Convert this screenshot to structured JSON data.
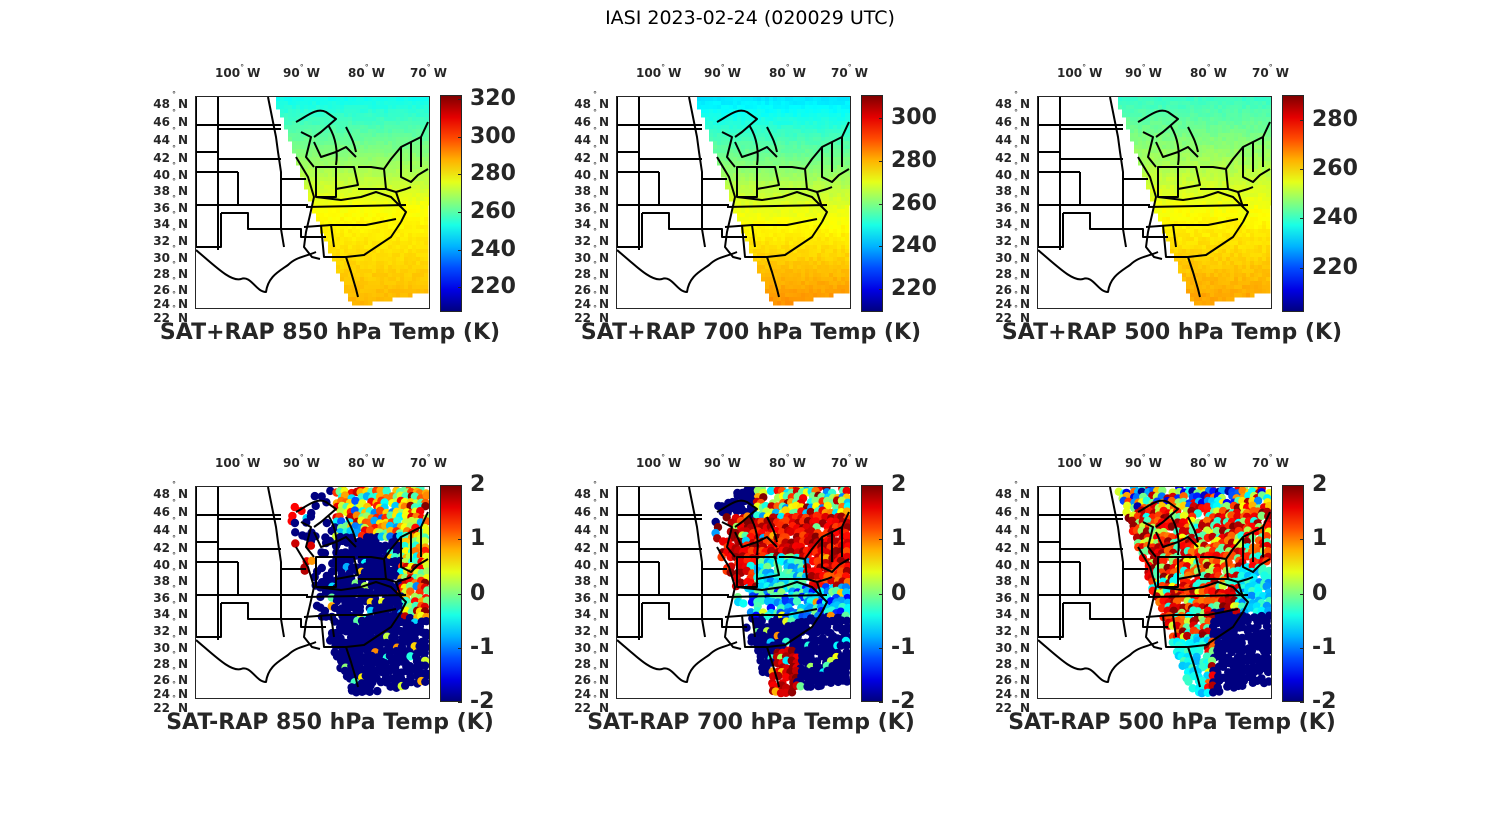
{
  "figure": {
    "title": "IASI 2023-02-24 (020029 UTC)"
  },
  "chart_data": [
    {
      "type": "heatmap",
      "title": "SAT+RAP 850 hPa Temp (K)",
      "variable": "850 hPa Temperature (SAT+RAP)",
      "units": "K",
      "colormap": "jet",
      "clim": [
        207,
        322
      ],
      "colorbar_ticks": [
        "220",
        "240",
        "260",
        "280",
        "300",
        "320"
      ],
      "colorbar_tick_values": [
        220,
        240,
        260,
        280,
        300,
        320
      ],
      "lon_ticks": [
        "100",
        "90",
        "80",
        "70"
      ],
      "lat_ticks": [
        "48",
        "46",
        "44",
        "42",
        "40",
        "38",
        "36",
        "34",
        "32",
        "30",
        "28",
        "26",
        "24",
        "22"
      ],
      "field": "gradient",
      "values_summary": {
        "north": 252,
        "mid": 278,
        "south": 288
      }
    },
    {
      "type": "heatmap",
      "title": "SAT+RAP 700 hPa Temp (K)",
      "variable": "700 hPa Temperature (SAT+RAP)",
      "units": "K",
      "colormap": "jet",
      "clim": [
        209,
        311
      ],
      "colorbar_ticks": [
        "220",
        "240",
        "260",
        "280",
        "300"
      ],
      "colorbar_tick_values": [
        220,
        240,
        260,
        280,
        300
      ],
      "lon_ticks": [
        "100",
        "90",
        "80",
        "70"
      ],
      "lat_ticks": [
        "48",
        "46",
        "44",
        "42",
        "40",
        "38",
        "36",
        "34",
        "32",
        "30",
        "28",
        "26",
        "24",
        "22"
      ],
      "field": "gradient",
      "values_summary": {
        "north": 245,
        "mid": 270,
        "south": 285
      }
    },
    {
      "type": "heatmap",
      "title": "SAT+RAP 500 hPa Temp (K)",
      "variable": "500 hPa Temperature (SAT+RAP)",
      "units": "K",
      "colormap": "jet",
      "clim": [
        202,
        290
      ],
      "colorbar_ticks": [
        "220",
        "240",
        "260",
        "280"
      ],
      "colorbar_tick_values": [
        220,
        240,
        260,
        280
      ],
      "lon_ticks": [
        "100",
        "90",
        "80",
        "70"
      ],
      "lat_ticks": [
        "48",
        "46",
        "44",
        "42",
        "40",
        "38",
        "36",
        "34",
        "32",
        "30",
        "28",
        "26",
        "24",
        "22"
      ],
      "field": "gradient",
      "values_summary": {
        "north": 240,
        "mid": 256,
        "south": 266
      }
    },
    {
      "type": "scatter",
      "title": "SAT-RAP 850 hPa Temp (K)",
      "variable": "850 hPa Temperature difference (SAT-RAP)",
      "units": "K",
      "colormap": "jet",
      "clim": [
        -2,
        2
      ],
      "colorbar_ticks": [
        "-2",
        "-1",
        "0",
        "1",
        "2"
      ],
      "colorbar_tick_values": [
        -2,
        -1,
        0,
        1,
        2
      ],
      "lon_ticks": [
        "100",
        "90",
        "80",
        "70"
      ],
      "lat_ticks": [
        "48",
        "46",
        "44",
        "42",
        "40",
        "38",
        "36",
        "34",
        "32",
        "30",
        "28",
        "26",
        "24",
        "22"
      ],
      "field": "diff850",
      "values_summary": {
        "dominant": -2,
        "northeast_mix": 0.5
      }
    },
    {
      "type": "scatter",
      "title": "SAT-RAP 700 hPa Temp (K)",
      "variable": "700 hPa Temperature difference (SAT-RAP)",
      "units": "K",
      "colormap": "jet",
      "clim": [
        -2,
        2
      ],
      "colorbar_ticks": [
        "-2",
        "-1",
        "0",
        "1",
        "2"
      ],
      "colorbar_tick_values": [
        -2,
        -1,
        0,
        1,
        2
      ],
      "lon_ticks": [
        "100",
        "90",
        "80",
        "70"
      ],
      "lat_ticks": [
        "48",
        "46",
        "44",
        "42",
        "40",
        "38",
        "36",
        "34",
        "32",
        "30",
        "28",
        "26",
        "24",
        "22"
      ],
      "field": "diff700",
      "values_summary": {
        "great_lakes": 2,
        "south": -2
      }
    },
    {
      "type": "scatter",
      "title": "SAT-RAP 500 hPa Temp (K)",
      "variable": "500 hPa Temperature difference (SAT-RAP)",
      "units": "K",
      "colormap": "jet",
      "clim": [
        -2,
        2
      ],
      "colorbar_ticks": [
        "-2",
        "-1",
        "0",
        "1",
        "2"
      ],
      "colorbar_tick_values": [
        -2,
        -1,
        0,
        1,
        2
      ],
      "lon_ticks": [
        "100",
        "90",
        "80",
        "70"
      ],
      "lat_ticks": [
        "48",
        "46",
        "44",
        "42",
        "40",
        "38",
        "36",
        "34",
        "32",
        "30",
        "28",
        "26",
        "24",
        "22"
      ],
      "field": "diff500",
      "values_summary": {
        "north_inland": 1.5,
        "southeast_ocean": -2
      }
    }
  ],
  "labels": {
    "lon_suffix": "W",
    "lat_suffix": "N",
    "degree": "°"
  }
}
